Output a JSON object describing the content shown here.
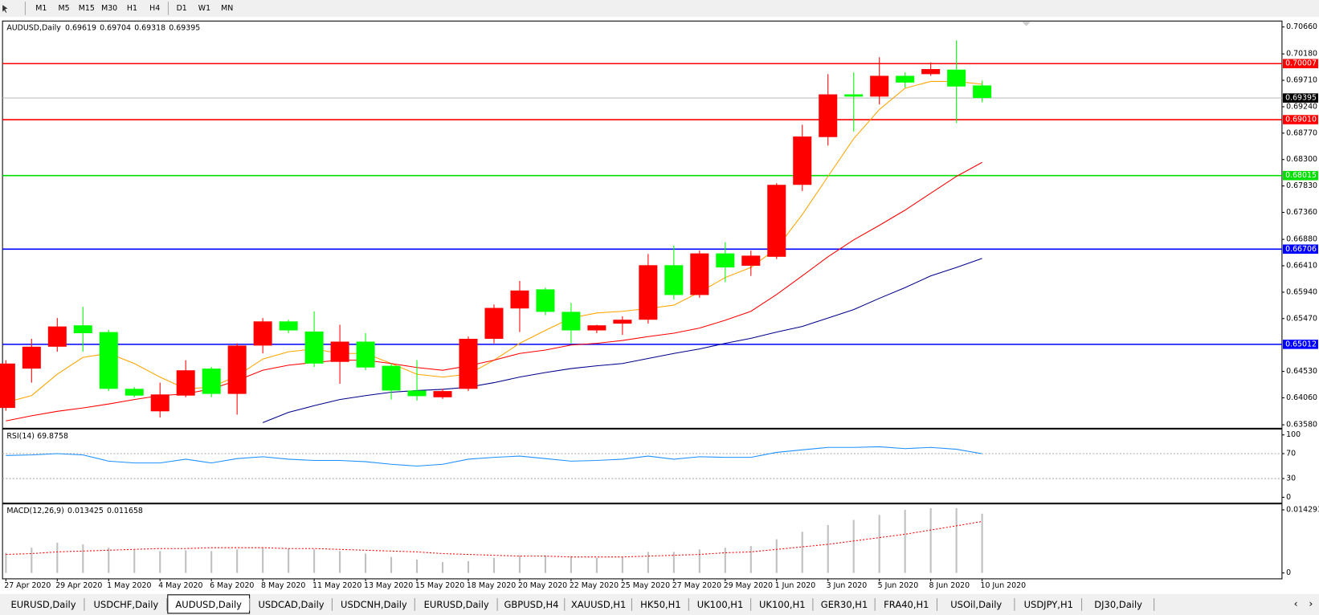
{
  "toolbar": {
    "timeframes": [
      "M1",
      "M5",
      "M15",
      "M30",
      "H1",
      "H4",
      "D1",
      "W1",
      "MN"
    ]
  },
  "tabs": {
    "items": [
      "EURUSD,Daily",
      "USDCHF,Daily",
      "AUDUSD,Daily",
      "USDCAD,Daily",
      "USDCNH,Daily",
      "EURUSD,Daily",
      "GBPUSD,H4",
      "XAUUSD,H1",
      "HK50,H1",
      "UK100,H1",
      "UK100,H1",
      "GER30,H1",
      "FRA40,H1",
      "USOil,Daily",
      "USDJPY,H1",
      "DJ30,Daily"
    ],
    "active": 2
  },
  "chart_data": [
    {
      "type": "candlestick",
      "title": "AUDUSD,Daily",
      "categories": [
        "27 Apr 2020",
        null,
        "29 Apr 2020",
        null,
        "1 May 2020",
        null,
        "4 May 2020",
        null,
        "6 May 2020",
        null,
        "8 May 2020",
        null,
        "11 May 2020",
        null,
        "13 May 2020",
        null,
        "15 May 2020",
        null,
        "18 May 2020",
        null,
        "20 May 2020",
        null,
        "22 May 2020",
        null,
        "25 May 2020",
        null,
        "27 May 2020",
        null,
        "29 May 2020",
        null,
        "1 Jun 2020",
        null,
        "3 Jun 2020",
        null,
        "5 Jun 2020",
        null,
        "8 Jun 2020",
        null,
        "10 Jun 2020"
      ],
      "open": [
        0.6388,
        0.6458,
        0.6497,
        0.6535,
        0.6523,
        0.6422,
        0.6382,
        0.641,
        0.6458,
        0.6413,
        0.6499,
        0.6542,
        0.6524,
        0.647,
        0.6506,
        0.6463,
        0.6419,
        0.6407,
        0.6422,
        0.6511,
        0.6565,
        0.6599,
        0.6559,
        0.6526,
        0.6538,
        0.6545,
        0.6642,
        0.6589,
        0.6663,
        0.6641,
        0.6657,
        0.6785,
        0.687,
        0.6946,
        0.6942,
        0.6979,
        0.6982,
        0.699,
        0.69619
      ],
      "high": [
        0.6473,
        0.6511,
        0.6548,
        0.6568,
        0.6527,
        0.6425,
        0.6433,
        0.6473,
        0.6461,
        0.6503,
        0.6548,
        0.6545,
        0.656,
        0.6536,
        0.6521,
        0.6467,
        0.6473,
        0.6422,
        0.6515,
        0.6572,
        0.6614,
        0.6602,
        0.6575,
        0.6536,
        0.6551,
        0.6662,
        0.6677,
        0.6668,
        0.6683,
        0.6668,
        0.6788,
        0.6892,
        0.6982,
        0.6985,
        0.7012,
        0.6985,
        0.7003,
        0.7042,
        0.69704
      ],
      "low": [
        0.6383,
        0.6433,
        0.6488,
        0.6488,
        0.6418,
        0.6407,
        0.6371,
        0.6407,
        0.6407,
        0.6376,
        0.6485,
        0.6521,
        0.6461,
        0.6431,
        0.6455,
        0.6403,
        0.6401,
        0.6404,
        0.6418,
        0.6503,
        0.6523,
        0.6553,
        0.6503,
        0.6521,
        0.6518,
        0.6538,
        0.6581,
        0.6584,
        0.6612,
        0.6623,
        0.6653,
        0.6774,
        0.6855,
        0.688,
        0.6928,
        0.6958,
        0.6979,
        0.6895,
        0.69318
      ],
      "close": [
        0.6467,
        0.6497,
        0.6533,
        0.6521,
        0.6422,
        0.641,
        0.6412,
        0.6455,
        0.6413,
        0.6499,
        0.6542,
        0.6526,
        0.6467,
        0.6506,
        0.646,
        0.6419,
        0.6409,
        0.6418,
        0.6511,
        0.6566,
        0.6597,
        0.6559,
        0.6526,
        0.6535,
        0.6545,
        0.6642,
        0.6589,
        0.6663,
        0.6638,
        0.6659,
        0.6785,
        0.6871,
        0.6946,
        0.6942,
        0.6979,
        0.6967,
        0.6991,
        0.696,
        0.69395
      ],
      "up_color": "#ff0000",
      "down_color": "#00ff00",
      "lines": [
        {
          "color": "#ffa500",
          "values": [
            0.6398,
            0.641,
            0.6448,
            0.6478,
            0.6485,
            0.6467,
            0.6443,
            0.6422,
            0.6425,
            0.6445,
            0.6475,
            0.6488,
            0.6493,
            0.6485,
            0.6485,
            0.6467,
            0.6448,
            0.6443,
            0.6448,
            0.6473,
            0.6503,
            0.6526,
            0.6548,
            0.6557,
            0.656,
            0.6565,
            0.6571,
            0.6594,
            0.662,
            0.6638,
            0.6672,
            0.6732,
            0.68,
            0.6867,
            0.6919,
            0.6957,
            0.6969,
            0.6969,
            0.6964
          ]
        },
        {
          "color": "#ff0000",
          "values": [
            0.6365,
            0.6374,
            0.6382,
            0.6388,
            0.6395,
            0.6403,
            0.641,
            0.6413,
            0.6422,
            0.6437,
            0.6455,
            0.6464,
            0.6469,
            0.6473,
            0.6473,
            0.6467,
            0.646,
            0.6455,
            0.6463,
            0.6473,
            0.6485,
            0.6491,
            0.65,
            0.6503,
            0.6508,
            0.6515,
            0.6521,
            0.653,
            0.6544,
            0.656,
            0.659,
            0.6623,
            0.6657,
            0.6687,
            0.6713,
            0.674,
            0.677,
            0.68,
            0.6825
          ]
        },
        {
          "color": "#00008b",
          "values": [
            null,
            null,
            null,
            null,
            null,
            null,
            null,
            null,
            null,
            null,
            0.6362,
            0.638,
            0.6392,
            0.6403,
            0.641,
            0.6416,
            0.6419,
            0.6421,
            0.6425,
            0.6433,
            0.6443,
            0.6451,
            0.6458,
            0.6463,
            0.6467,
            0.6476,
            0.6485,
            0.6493,
            0.6503,
            0.6512,
            0.6523,
            0.6533,
            0.6548,
            0.6563,
            0.6583,
            0.6602,
            0.6623,
            0.6638,
            0.6654
          ]
        }
      ],
      "levels": [
        {
          "value": 0.70007,
          "color": "#ff0000"
        },
        {
          "value": 0.6901,
          "label": "0.69010",
          "color": "#ff0000"
        },
        {
          "value": 0.68015,
          "color": "#00e000"
        },
        {
          "value": 0.66706,
          "color": "#0000ff"
        },
        {
          "value": 0.65012,
          "color": "#0000ff"
        }
      ],
      "ylim": [
        0.63534,
        0.70735
      ],
      "yticks": [
        {
          "value": 0.7066,
          "label": "0.70660"
        },
        {
          "value": 0.7018,
          "label": "0.70180"
        },
        {
          "value": 0.6971,
          "label": "0.69710"
        },
        {
          "value": 0.6924,
          "label": "0.69240"
        },
        {
          "value": 0.6877,
          "label": "0.68770"
        },
        {
          "value": 0.683,
          "label": "0.68300"
        },
        {
          "value": 0.6783,
          "label": "0.67830"
        },
        {
          "value": 0.6736,
          "label": "0.67360"
        },
        {
          "value": 0.6688,
          "label": "0.66880"
        },
        {
          "value": 0.6641,
          "label": "0.66410"
        },
        {
          "value": 0.6594,
          "label": "0.65940"
        },
        {
          "value": 0.6547,
          "label": "0.65470"
        },
        {
          "value": 0.6453,
          "label": "0.64530"
        },
        {
          "value": 0.6406,
          "label": "0.64060"
        },
        {
          "value": 0.6358,
          "label": "0.63580"
        }
      ]
    },
    {
      "type": "line",
      "title": "RSI(14)",
      "color": "#1e90ff",
      "values": [
        67,
        68,
        70,
        68,
        58,
        55,
        55,
        61,
        55,
        62,
        65,
        61,
        59,
        59,
        57,
        53,
        50,
        53,
        61,
        64,
        66,
        62,
        58,
        59,
        61,
        66,
        61,
        65,
        64,
        64,
        72,
        76,
        80,
        80,
        81,
        78,
        80,
        77,
        69.8758
      ],
      "ylim": [
        -8,
        108
      ],
      "yticks": [
        100,
        70,
        30,
        0
      ]
    },
    {
      "type": "macd",
      "title": "MACD(12,26,9)",
      "color": "#c0c0c0",
      "signal_color": "#ff0000",
      "values": [
        0.00457,
        0.00572,
        0.00686,
        0.00648,
        0.00572,
        0.00534,
        0.00496,
        0.00515,
        0.00496,
        0.00534,
        0.00572,
        0.00553,
        0.00534,
        0.00496,
        0.00438,
        0.00362,
        0.00305,
        0.00248,
        0.00267,
        0.00343,
        0.004,
        0.004,
        0.00381,
        0.00343,
        0.00362,
        0.00477,
        0.00477,
        0.00534,
        0.00572,
        0.0061,
        0.00762,
        0.00934,
        0.01086,
        0.01201,
        0.01315,
        0.0143,
        0.01468,
        0.01468,
        0.013425
      ],
      "signal": [
        0.00419,
        0.00438,
        0.00477,
        0.00496,
        0.00515,
        0.00534,
        0.00553,
        0.00553,
        0.00572,
        0.00572,
        0.00572,
        0.00553,
        0.00553,
        0.00534,
        0.00515,
        0.00496,
        0.00477,
        0.00438,
        0.00419,
        0.004,
        0.00381,
        0.00381,
        0.00362,
        0.00362,
        0.00362,
        0.00381,
        0.004,
        0.00419,
        0.00457,
        0.00477,
        0.00534,
        0.00591,
        0.00648,
        0.00724,
        0.00801,
        0.00877,
        0.00972,
        0.01067,
        0.011658
      ],
      "ylim": [
        -0.00114,
        0.01525
      ],
      "yticks": [
        0.014293,
        0
      ]
    }
  ]
}
